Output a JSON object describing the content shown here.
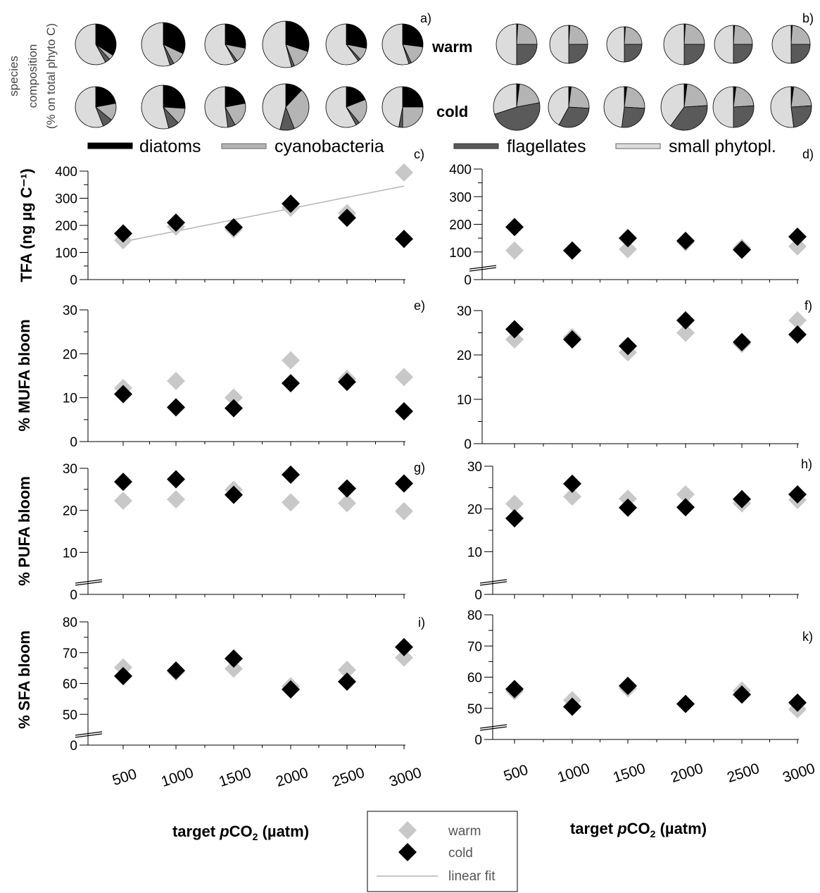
{
  "figure": {
    "pie_ylabel_line1": "species",
    "pie_ylabel_line2": "composition",
    "pie_ylabel_line3": "(% on total phyto C)",
    "row_labels": {
      "warm": "warm",
      "cold": "cold"
    },
    "pie_legend": [
      {
        "key": "diatoms",
        "label": "diatoms",
        "color": "#000000"
      },
      {
        "key": "cyanobacteria",
        "label": "cyanobacteria",
        "color": "#b4b4b4"
      },
      {
        "key": "flagellates",
        "label": "flagellates",
        "color": "#5a5a5a"
      },
      {
        "key": "small",
        "label": "small phytopl.",
        "color": "#dcdcdc"
      }
    ],
    "xlabel_left_pre": "target ",
    "xlabel_left_italic": "p",
    "xlabel_left_co": "CO",
    "xlabel_left_sub": "2",
    "xlabel_left_post": " (µatm)",
    "xlabel_right_pre": "target ",
    "xlabel_right_italic": "p",
    "xlabel_right_co": "CO",
    "xlabel_right_sub": "2",
    "xlabel_right_post": " (µatm)",
    "legend": {
      "warm": "warm",
      "cold": "cold",
      "fit": "linear fit"
    },
    "colors": {
      "warm": "#c8c8c8",
      "cold": "#000000",
      "fit": "#b4b4b4"
    }
  },
  "chart_data": [
    {
      "type": "pie",
      "panel": "a)",
      "note": "fractions read by eye; order = diatoms, cyanobacteria, flagellates, small phytopl.",
      "warm": [
        [
          0.34,
          0.04,
          0.04,
          0.58
        ],
        [
          0.32,
          0.1,
          0.03,
          0.55
        ],
        [
          0.28,
          0.12,
          0.02,
          0.58
        ],
        [
          0.3,
          0.14,
          0.02,
          0.54
        ],
        [
          0.28,
          0.1,
          0.02,
          0.6
        ],
        [
          0.27,
          0.16,
          0.02,
          0.55
        ]
      ],
      "cold": [
        [
          0.22,
          0.14,
          0.08,
          0.56
        ],
        [
          0.26,
          0.12,
          0.08,
          0.54
        ],
        [
          0.22,
          0.2,
          0.06,
          0.52
        ],
        [
          0.12,
          0.32,
          0.1,
          0.46
        ],
        [
          0.19,
          0.2,
          0.03,
          0.58
        ],
        [
          0.25,
          0.25,
          0.03,
          0.47
        ]
      ]
    },
    {
      "type": "pie",
      "panel": "b)",
      "warm": [
        [
          0.01,
          0.24,
          0.25,
          0.5
        ],
        [
          0.01,
          0.24,
          0.25,
          0.5
        ],
        [
          0.01,
          0.24,
          0.25,
          0.5
        ],
        [
          0.01,
          0.24,
          0.25,
          0.5
        ],
        [
          0.01,
          0.24,
          0.25,
          0.5
        ],
        [
          0.01,
          0.24,
          0.25,
          0.5
        ]
      ],
      "cold": [
        [
          0.02,
          0.2,
          0.48,
          0.3
        ],
        [
          0.02,
          0.24,
          0.32,
          0.42
        ],
        [
          0.02,
          0.24,
          0.26,
          0.48
        ],
        [
          0.02,
          0.22,
          0.36,
          0.4
        ],
        [
          0.02,
          0.22,
          0.26,
          0.5
        ],
        [
          0.02,
          0.22,
          0.24,
          0.52
        ]
      ]
    },
    {
      "type": "scatter",
      "panel": "c)",
      "categories": [
        500,
        1000,
        1500,
        2000,
        2500,
        3000
      ],
      "ylabel": "TFA (ng µg C⁻¹)",
      "yticks": [
        "0",
        "100",
        "200",
        "300",
        "400"
      ],
      "ylim": [
        0,
        400
      ],
      "axis_break": false,
      "series": [
        {
          "name": "warm",
          "values": [
            145,
            195,
            185,
            265,
            245,
            395
          ]
        },
        {
          "name": "cold",
          "values": [
            170,
            210,
            193,
            280,
            228,
            150
          ]
        }
      ],
      "fit": {
        "x": [
          500,
          3000
        ],
        "y": [
          140,
          345
        ]
      }
    },
    {
      "type": "scatter",
      "panel": "d)",
      "categories": [
        500,
        1000,
        1500,
        2000,
        2500,
        3000
      ],
      "ylabel": "",
      "yticks": [
        "0",
        "100",
        "200",
        "300",
        "400"
      ],
      "ylim": [
        0,
        400
      ],
      "axis_break": true,
      "series": [
        {
          "name": "warm",
          "values": [
            105,
            105,
            110,
            135,
            115,
            120
          ]
        },
        {
          "name": "cold",
          "values": [
            190,
            105,
            150,
            140,
            108,
            155
          ]
        }
      ]
    },
    {
      "type": "scatter",
      "panel": "e)",
      "categories": [
        500,
        1000,
        1500,
        2000,
        2500,
        3000
      ],
      "ylabel": "% MUFA bloom",
      "yticks": [
        "0",
        "10",
        "20",
        "30"
      ],
      "ylim": [
        0,
        30
      ],
      "axis_break": false,
      "series": [
        {
          "name": "warm",
          "values": [
            12.2,
            13.8,
            10.0,
            18.5,
            14.3,
            14.7
          ]
        },
        {
          "name": "cold",
          "values": [
            10.8,
            7.8,
            7.6,
            13.3,
            13.6,
            6.9
          ]
        }
      ]
    },
    {
      "type": "scatter",
      "panel": "f)",
      "categories": [
        500,
        1000,
        1500,
        2000,
        2500,
        3000
      ],
      "ylabel": "",
      "yticks": [
        "0",
        "10",
        "20",
        "30"
      ],
      "ylim": [
        0,
        30
      ],
      "axis_break": false,
      "series": [
        {
          "name": "warm",
          "values": [
            23.5,
            24.0,
            20.6,
            25.0,
            22.5,
            27.8
          ]
        },
        {
          "name": "cold",
          "values": [
            25.8,
            23.5,
            22.0,
            27.8,
            22.9,
            24.6
          ]
        }
      ]
    },
    {
      "type": "scatter",
      "panel": "g)",
      "categories": [
        500,
        1000,
        1500,
        2000,
        2500,
        3000
      ],
      "ylabel": "% PUFA bloom",
      "yticks": [
        "0",
        "10",
        "20",
        "30"
      ],
      "ylim": [
        0,
        30
      ],
      "axis_break": true,
      "series": [
        {
          "name": "warm",
          "values": [
            22.3,
            22.6,
            24.9,
            21.9,
            21.7,
            19.8
          ]
        },
        {
          "name": "cold",
          "values": [
            26.8,
            27.4,
            23.7,
            28.5,
            25.2,
            26.4
          ]
        }
      ]
    },
    {
      "type": "scatter",
      "panel": "h)",
      "categories": [
        500,
        1000,
        1500,
        2000,
        2500,
        3000
      ],
      "ylabel": "",
      "yticks": [
        "0",
        "10",
        "20",
        "30"
      ],
      "ylim": [
        0,
        30
      ],
      "axis_break": true,
      "series": [
        {
          "name": "warm",
          "values": [
            21.2,
            22.9,
            22.4,
            23.4,
            21.3,
            22.1
          ]
        },
        {
          "name": "cold",
          "values": [
            17.8,
            25.9,
            20.3,
            20.4,
            22.3,
            23.4
          ]
        }
      ]
    },
    {
      "type": "scatter",
      "panel": "i)",
      "categories": [
        500,
        1000,
        1500,
        2000,
        2500,
        3000
      ],
      "ylabel": "% SFA bloom",
      "yticks": [
        "0",
        "50",
        "60",
        "70",
        "80"
      ],
      "ylim": [
        40,
        80
      ],
      "axis_break": true,
      "series": [
        {
          "name": "warm",
          "values": [
            65.2,
            63.8,
            64.8,
            59.1,
            64.4,
            68.4
          ]
        },
        {
          "name": "cold",
          "values": [
            62.4,
            64.2,
            68.1,
            58.1,
            60.6,
            71.8
          ]
        }
      ]
    },
    {
      "type": "scatter",
      "panel": "k)",
      "categories": [
        500,
        1000,
        1500,
        2000,
        2500,
        3000
      ],
      "ylabel": "",
      "yticks": [
        "0",
        "50",
        "60",
        "70",
        "80"
      ],
      "ylim": [
        40,
        80
      ],
      "axis_break": true,
      "series": [
        {
          "name": "warm",
          "values": [
            55.5,
            52.6,
            56.4,
            51.4,
            55.7,
            49.7
          ]
        },
        {
          "name": "cold",
          "values": [
            56.2,
            50.5,
            57.2,
            51.4,
            54.4,
            51.8
          ]
        }
      ]
    }
  ]
}
